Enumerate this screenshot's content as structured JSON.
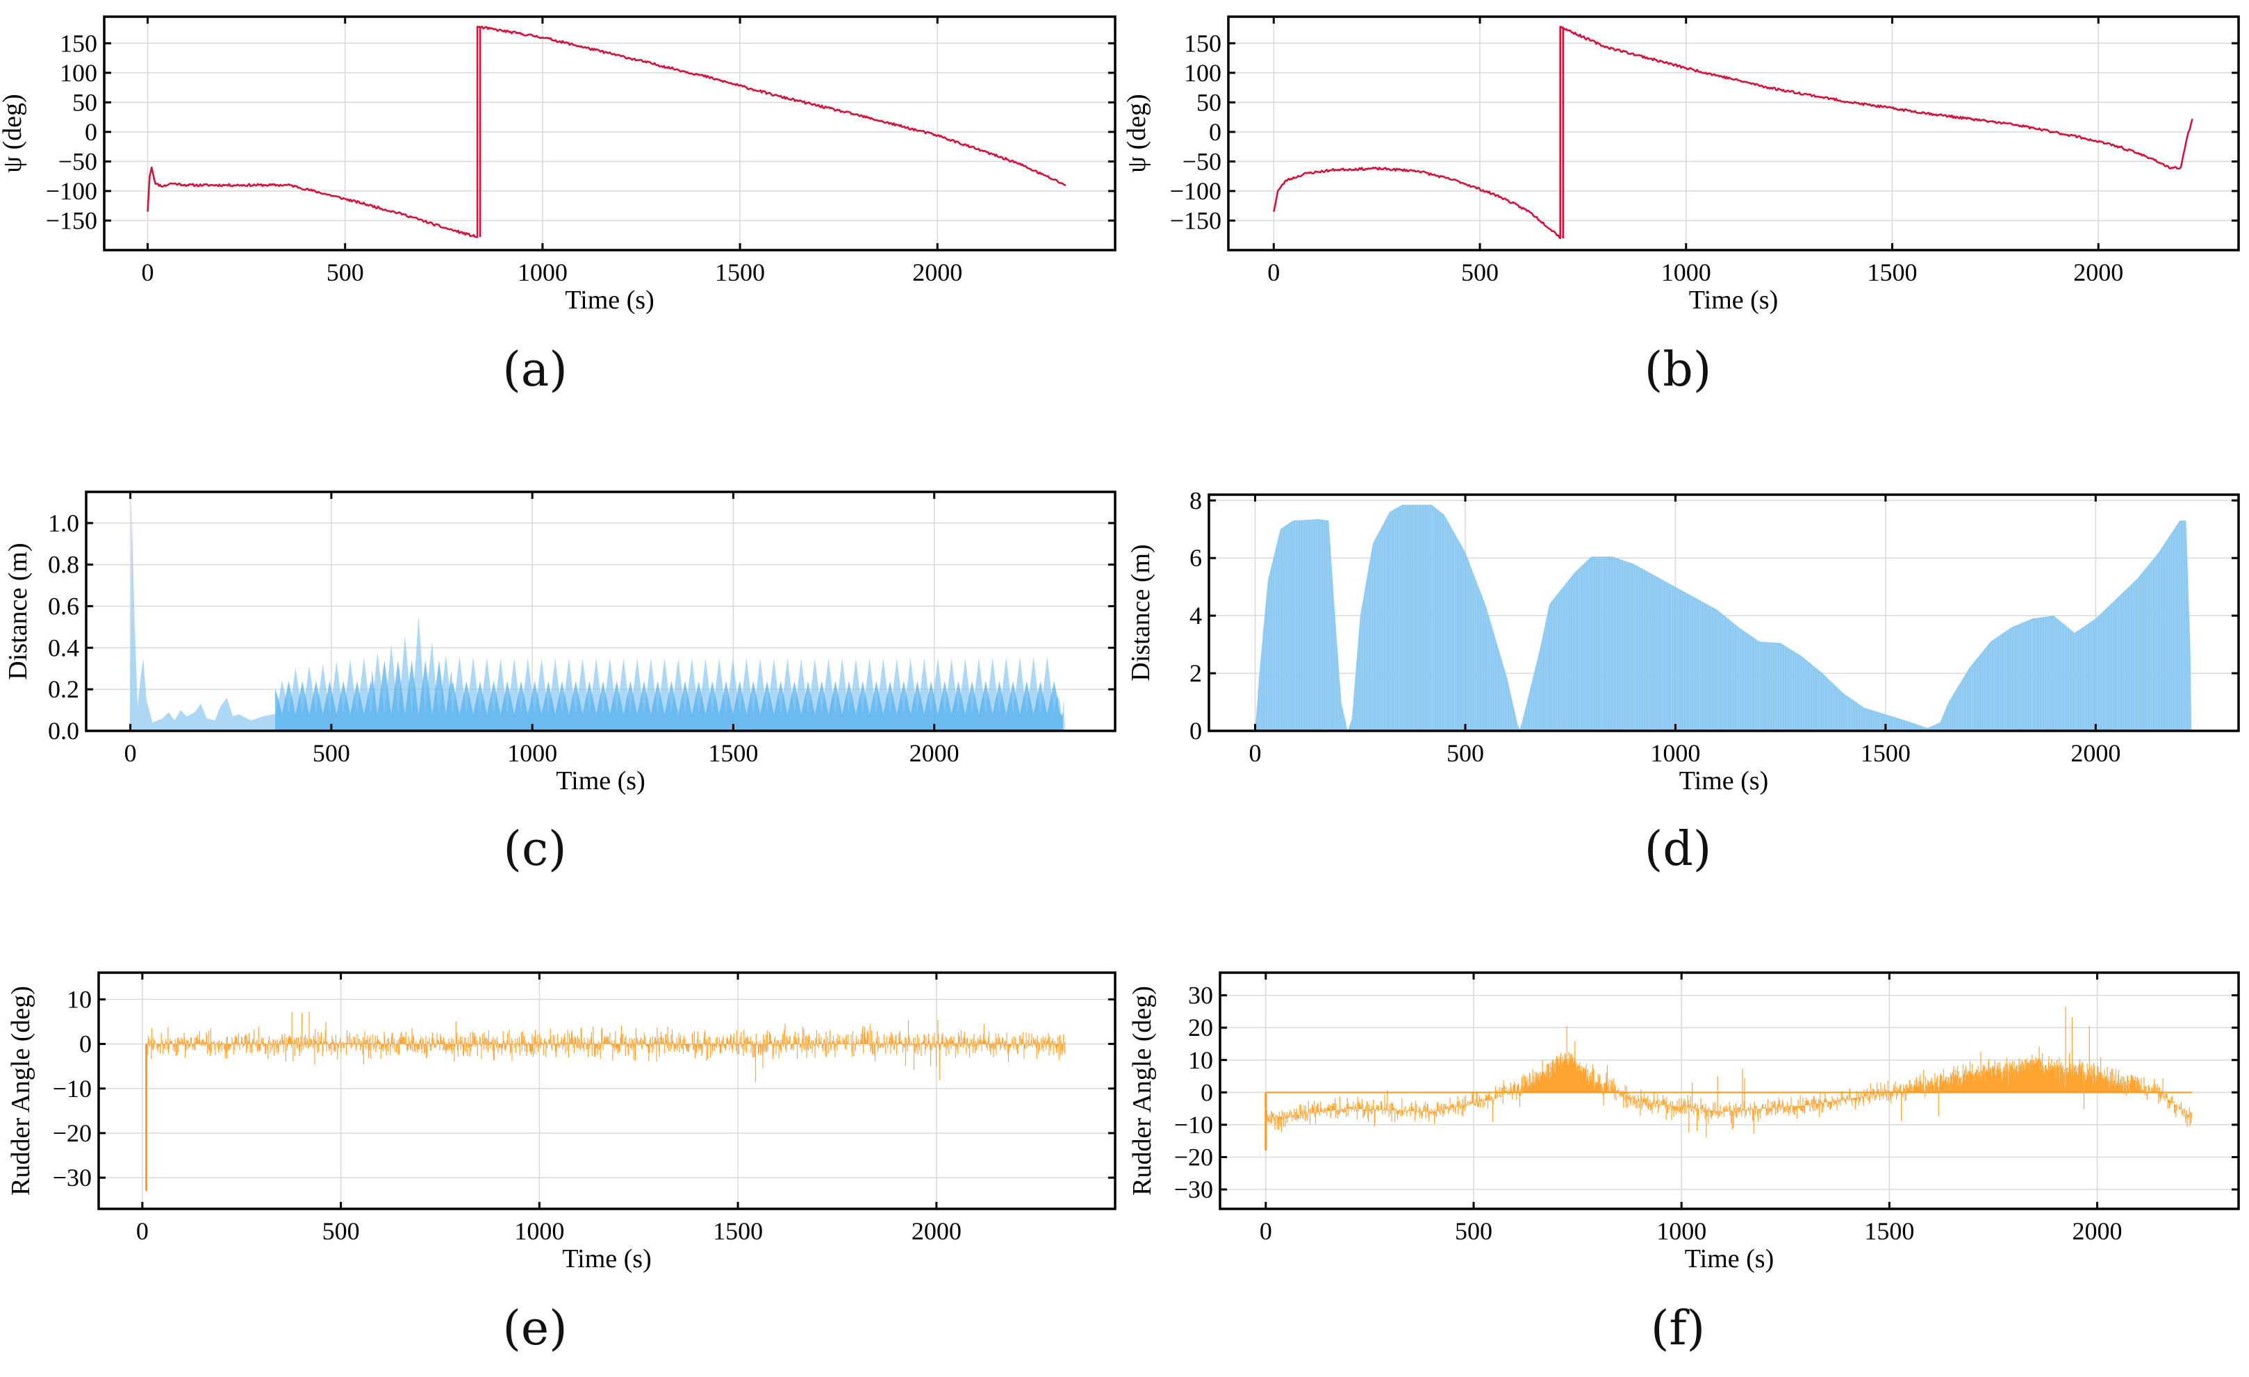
{
  "colors": {
    "heading": "#d2143c",
    "distance": "#7fc3f0",
    "distance_dark": "#55b0ee",
    "rudder": "#ff9a1a"
  },
  "chart_data": [
    {
      "id": "a",
      "type": "line",
      "panel_label": "(a)",
      "series_style": "line",
      "color": "#d2143c",
      "xlabel": "Time (s)",
      "ylabel": "ψ (deg)",
      "xlim": [
        -110,
        2450
      ],
      "ylim": [
        -200,
        195
      ],
      "xticks": [
        0,
        500,
        1000,
        1500,
        2000
      ],
      "yticks": [
        -150,
        -100,
        -50,
        0,
        50,
        100,
        150
      ],
      "xtick_labels": [
        "0",
        "500",
        "1000",
        "1500",
        "2000"
      ],
      "ytick_labels": [
        "−150",
        "−100",
        "−50",
        "0",
        "50",
        "100",
        "150"
      ],
      "noise": 2,
      "seed": 11,
      "points": [
        [
          0,
          -135
        ],
        [
          5,
          -75
        ],
        [
          10,
          -60
        ],
        [
          20,
          -88
        ],
        [
          40,
          -92
        ],
        [
          60,
          -87
        ],
        [
          100,
          -90
        ],
        [
          200,
          -90
        ],
        [
          300,
          -90
        ],
        [
          360,
          -90
        ],
        [
          450,
          -105
        ],
        [
          550,
          -122
        ],
        [
          650,
          -140
        ],
        [
          750,
          -162
        ],
        [
          835,
          -178
        ],
        [
          835,
          178
        ],
        [
          1000,
          160
        ],
        [
          1200,
          128
        ],
        [
          1400,
          96
        ],
        [
          1600,
          60
        ],
        [
          1800,
          28
        ],
        [
          2000,
          -6
        ],
        [
          2200,
          -52
        ],
        [
          2325,
          -90
        ]
      ]
    },
    {
      "id": "b",
      "type": "line",
      "panel_label": "(b)",
      "series_style": "line",
      "color": "#d2143c",
      "xlabel": "Time (s)",
      "ylabel": "ψ (deg)",
      "xlim": [
        -110,
        2340
      ],
      "ylim": [
        -200,
        195
      ],
      "xticks": [
        0,
        500,
        1000,
        1500,
        2000
      ],
      "yticks": [
        -150,
        -100,
        -50,
        0,
        50,
        100,
        150
      ],
      "xtick_labels": [
        "0",
        "500",
        "1000",
        "1500",
        "2000"
      ],
      "ytick_labels": [
        "−150",
        "−100",
        "−50",
        "0",
        "50",
        "100",
        "150"
      ],
      "noise": 2,
      "seed": 23,
      "points": [
        [
          0,
          -135
        ],
        [
          10,
          -100
        ],
        [
          30,
          -82
        ],
        [
          80,
          -70
        ],
        [
          150,
          -64
        ],
        [
          250,
          -62
        ],
        [
          350,
          -66
        ],
        [
          450,
          -84
        ],
        [
          550,
          -110
        ],
        [
          620,
          -135
        ],
        [
          690,
          -175
        ],
        [
          695,
          -180
        ],
        [
          695,
          178
        ],
        [
          800,
          145
        ],
        [
          1000,
          108
        ],
        [
          1200,
          75
        ],
        [
          1400,
          50
        ],
        [
          1600,
          30
        ],
        [
          1800,
          12
        ],
        [
          1950,
          -8
        ],
        [
          2050,
          -25
        ],
        [
          2130,
          -45
        ],
        [
          2175,
          -62
        ],
        [
          2200,
          -60
        ],
        [
          2215,
          -10
        ],
        [
          2228,
          22
        ]
      ]
    },
    {
      "id": "c",
      "type": "area",
      "panel_label": "(c)",
      "series_style": "fill",
      "color": "#7fc3f0",
      "xlabel": "Time (s)",
      "ylabel": "Distance (m)",
      "xlim": [
        -110,
        2450
      ],
      "ylim": [
        0,
        1.15
      ],
      "xticks": [
        0,
        500,
        1000,
        1500,
        2000
      ],
      "yticks": [
        0,
        0.2,
        0.4,
        0.6,
        0.8,
        1.0
      ],
      "xtick_labels": [
        "0",
        "500",
        "1000",
        "1500",
        "2000"
      ],
      "ytick_labels": [
        "0.0",
        "0.2",
        "0.4",
        "0.6",
        "0.8",
        "1.0"
      ],
      "oscillation": {
        "start": 360,
        "end": 2320,
        "period": 34,
        "low": 0.08,
        "high": 0.36,
        "inner_high": 0.24
      },
      "points": [
        [
          0,
          0
        ],
        [
          3,
          1.1
        ],
        [
          10,
          0.55
        ],
        [
          18,
          0.12
        ],
        [
          25,
          0.25
        ],
        [
          32,
          0.35
        ],
        [
          40,
          0.15
        ],
        [
          55,
          0.04
        ],
        [
          80,
          0.06
        ],
        [
          95,
          0.09
        ],
        [
          110,
          0.05
        ],
        [
          125,
          0.1
        ],
        [
          140,
          0.07
        ],
        [
          160,
          0.09
        ],
        [
          175,
          0.13
        ],
        [
          190,
          0.06
        ],
        [
          210,
          0.05
        ],
        [
          225,
          0.12
        ],
        [
          240,
          0.16
        ],
        [
          255,
          0.07
        ],
        [
          270,
          0.08
        ],
        [
          300,
          0.05
        ],
        [
          330,
          0.07
        ],
        [
          355,
          0.08
        ],
        [
          360,
          0.2
        ],
        [
          400,
          0.3
        ],
        [
          500,
          0.33
        ],
        [
          600,
          0.36
        ],
        [
          680,
          0.45
        ],
        [
          720,
          0.56
        ],
        [
          740,
          0.5
        ],
        [
          760,
          0.37
        ],
        [
          900,
          0.35
        ],
        [
          1200,
          0.35
        ],
        [
          1500,
          0.35
        ],
        [
          1800,
          0.35
        ],
        [
          2100,
          0.35
        ],
        [
          2300,
          0.36
        ],
        [
          2318,
          0.05
        ],
        [
          2322,
          0.16
        ],
        [
          2325,
          0
        ]
      ]
    },
    {
      "id": "d",
      "type": "area",
      "panel_label": "(d)",
      "series_style": "fill",
      "color": "#7fc3f0",
      "xlabel": "Time (s)",
      "ylabel": "Distance (m)",
      "xlim": [
        -110,
        2340
      ],
      "ylim": [
        0,
        8.2
      ],
      "xticks": [
        0,
        500,
        1000,
        1500,
        2000
      ],
      "yticks": [
        0,
        2,
        4,
        6,
        8
      ],
      "xtick_labels": [
        "0",
        "500",
        "1000",
        "1500",
        "2000"
      ],
      "ytick_labels": [
        "0",
        "2",
        "4",
        "6",
        "8"
      ],
      "points": [
        [
          0,
          0
        ],
        [
          10,
          2
        ],
        [
          30,
          5.2
        ],
        [
          60,
          7
        ],
        [
          90,
          7.3
        ],
        [
          150,
          7.35
        ],
        [
          175,
          7.3
        ],
        [
          190,
          4
        ],
        [
          205,
          1
        ],
        [
          220,
          0
        ],
        [
          230,
          0.4
        ],
        [
          250,
          4
        ],
        [
          280,
          6.5
        ],
        [
          320,
          7.6
        ],
        [
          350,
          7.85
        ],
        [
          420,
          7.85
        ],
        [
          450,
          7.5
        ],
        [
          500,
          6.2
        ],
        [
          550,
          4.3
        ],
        [
          600,
          1.8
        ],
        [
          625,
          0.2
        ],
        [
          630,
          0.05
        ],
        [
          640,
          0.6
        ],
        [
          680,
          3
        ],
        [
          700,
          4.4
        ],
        [
          760,
          5.5
        ],
        [
          800,
          6.05
        ],
        [
          850,
          6.05
        ],
        [
          900,
          5.8
        ],
        [
          1000,
          5
        ],
        [
          1100,
          4.2
        ],
        [
          1150,
          3.6
        ],
        [
          1200,
          3.1
        ],
        [
          1250,
          3.05
        ],
        [
          1300,
          2.6
        ],
        [
          1350,
          2
        ],
        [
          1400,
          1.3
        ],
        [
          1450,
          0.8
        ],
        [
          1550,
          0.35
        ],
        [
          1600,
          0.1
        ],
        [
          1630,
          0.3
        ],
        [
          1650,
          1
        ],
        [
          1700,
          2.2
        ],
        [
          1750,
          3.1
        ],
        [
          1800,
          3.6
        ],
        [
          1850,
          3.9
        ],
        [
          1900,
          4.0
        ],
        [
          1950,
          3.4
        ],
        [
          2000,
          3.9
        ],
        [
          2050,
          4.6
        ],
        [
          2100,
          5.3
        ],
        [
          2150,
          6.2
        ],
        [
          2200,
          7.3
        ],
        [
          2215,
          7.3
        ],
        [
          2225,
          3
        ],
        [
          2228,
          0
        ]
      ]
    },
    {
      "id": "e",
      "type": "line",
      "panel_label": "(e)",
      "series_style": "spikes",
      "color": "#ff9a1a",
      "xlabel": "Time (s)",
      "ylabel": "Rudder Angle (deg)",
      "xlim": [
        -110,
        2450
      ],
      "ylim": [
        -37,
        16
      ],
      "xticks": [
        0,
        500,
        1000,
        1500,
        2000
      ],
      "yticks": [
        -30,
        -20,
        -10,
        0,
        10
      ],
      "xtick_labels": [
        "0",
        "500",
        "1000",
        "1500",
        "2000"
      ],
      "ytick_labels": [
        "−30",
        "−20",
        "−10",
        "0",
        "10"
      ],
      "rudder": {
        "start": 10,
        "end": 2325,
        "step": 1.4,
        "seed": 5,
        "amplitude": 4.5,
        "peak": 13,
        "min_at_start": -33
      },
      "envelope": [
        [
          0,
          0
        ],
        [
          2325,
          0
        ]
      ]
    },
    {
      "id": "f",
      "type": "line",
      "panel_label": "(f)",
      "series_style": "spikes",
      "color": "#ff9a1a",
      "xlabel": "Time (s)",
      "ylabel": "Rudder Angle (deg)",
      "xlim": [
        -110,
        2340
      ],
      "ylim": [
        -36,
        37
      ],
      "xticks": [
        0,
        500,
        1000,
        1500,
        2000
      ],
      "yticks": [
        -30,
        -20,
        -10,
        0,
        10,
        20,
        30
      ],
      "xtick_labels": [
        "0",
        "500",
        "1000",
        "1500",
        "2000"
      ],
      "ytick_labels": [
        "−30",
        "−20",
        "−10",
        "0",
        "10",
        "20",
        "30"
      ],
      "rudder": {
        "start": 0,
        "end": 2228,
        "step": 1.3,
        "seed": 9,
        "amplitude": 5,
        "peak": 34,
        "min_at_start": -18
      },
      "envelope": [
        [
          0,
          -8
        ],
        [
          200,
          -5
        ],
        [
          400,
          -6
        ],
        [
          550,
          -2
        ],
        [
          650,
          5
        ],
        [
          720,
          12
        ],
        [
          780,
          5
        ],
        [
          900,
          -3
        ],
        [
          1100,
          -6
        ],
        [
          1300,
          -4
        ],
        [
          1500,
          0
        ],
        [
          1700,
          6
        ],
        [
          1850,
          9
        ],
        [
          2000,
          6
        ],
        [
          2150,
          0
        ],
        [
          2228,
          -8
        ]
      ]
    }
  ]
}
